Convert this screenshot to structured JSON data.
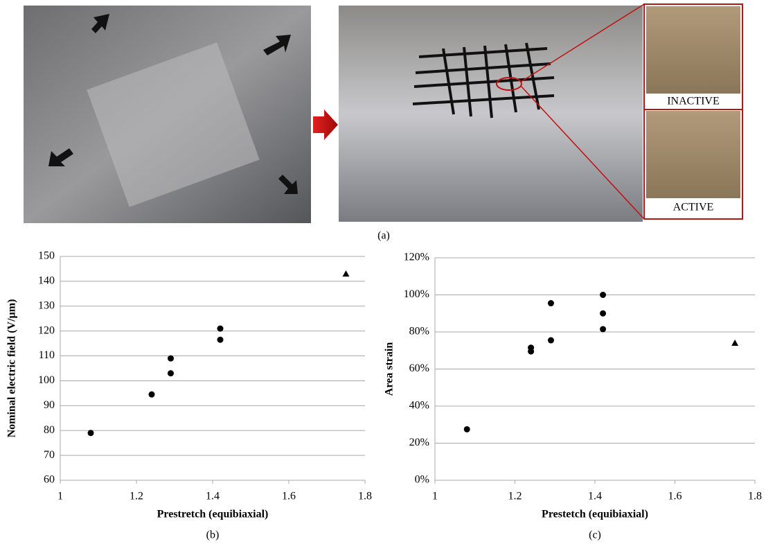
{
  "figure": {
    "panel_a_caption": "(a)",
    "inset_labels": [
      "INACTIVE",
      "ACTIVE"
    ]
  },
  "chart_data": [
    {
      "type": "scatter",
      "caption": "(b)",
      "x_label": "Prestretch (equibiaxial)",
      "y_label": "Nominal electric field (V/µm)",
      "xlim": [
        1,
        1.8
      ],
      "xticks": [
        1,
        1.2,
        1.4,
        1.6,
        1.8
      ],
      "ylim": [
        60,
        150
      ],
      "yticks": [
        60,
        70,
        80,
        90,
        100,
        110,
        120,
        130,
        140,
        150
      ],
      "grid": true,
      "series": [
        {
          "marker": "circle",
          "color": "#000000",
          "x": [
            1.08,
            1.24,
            1.29,
            1.29,
            1.42,
            1.42
          ],
          "values": [
            79,
            94.5,
            103,
            109,
            116.5,
            121
          ]
        },
        {
          "marker": "triangle",
          "color": "#000000",
          "x": [
            1.75
          ],
          "values": [
            143
          ]
        }
      ]
    },
    {
      "type": "scatter",
      "caption": "(c)",
      "x_label": "Prestetch (equibiaxial)",
      "y_label": "Area strain",
      "xlim": [
        1,
        1.8
      ],
      "xticks": [
        1,
        1.2,
        1.4,
        1.6,
        1.8
      ],
      "ylim": [
        0,
        120
      ],
      "yticks": [
        {
          "value": 0,
          "label": "0%"
        },
        {
          "value": 20,
          "label": "20%"
        },
        {
          "value": 40,
          "label": "40%"
        },
        {
          "value": 60,
          "label": "60%"
        },
        {
          "value": 80,
          "label": "80%"
        },
        {
          "value": 100,
          "label": "100%"
        },
        {
          "value": 120,
          "label": "120%"
        }
      ],
      "grid": true,
      "series": [
        {
          "marker": "circle",
          "color": "#000000",
          "x": [
            1.08,
            1.24,
            1.24,
            1.29,
            1.29,
            1.42,
            1.42,
            1.42
          ],
          "values": [
            27.5,
            71.5,
            69.5,
            95.5,
            75.5,
            100,
            90,
            81.5
          ]
        },
        {
          "marker": "triangle",
          "color": "#000000",
          "x": [
            1.75
          ],
          "values": [
            74
          ]
        }
      ]
    }
  ]
}
